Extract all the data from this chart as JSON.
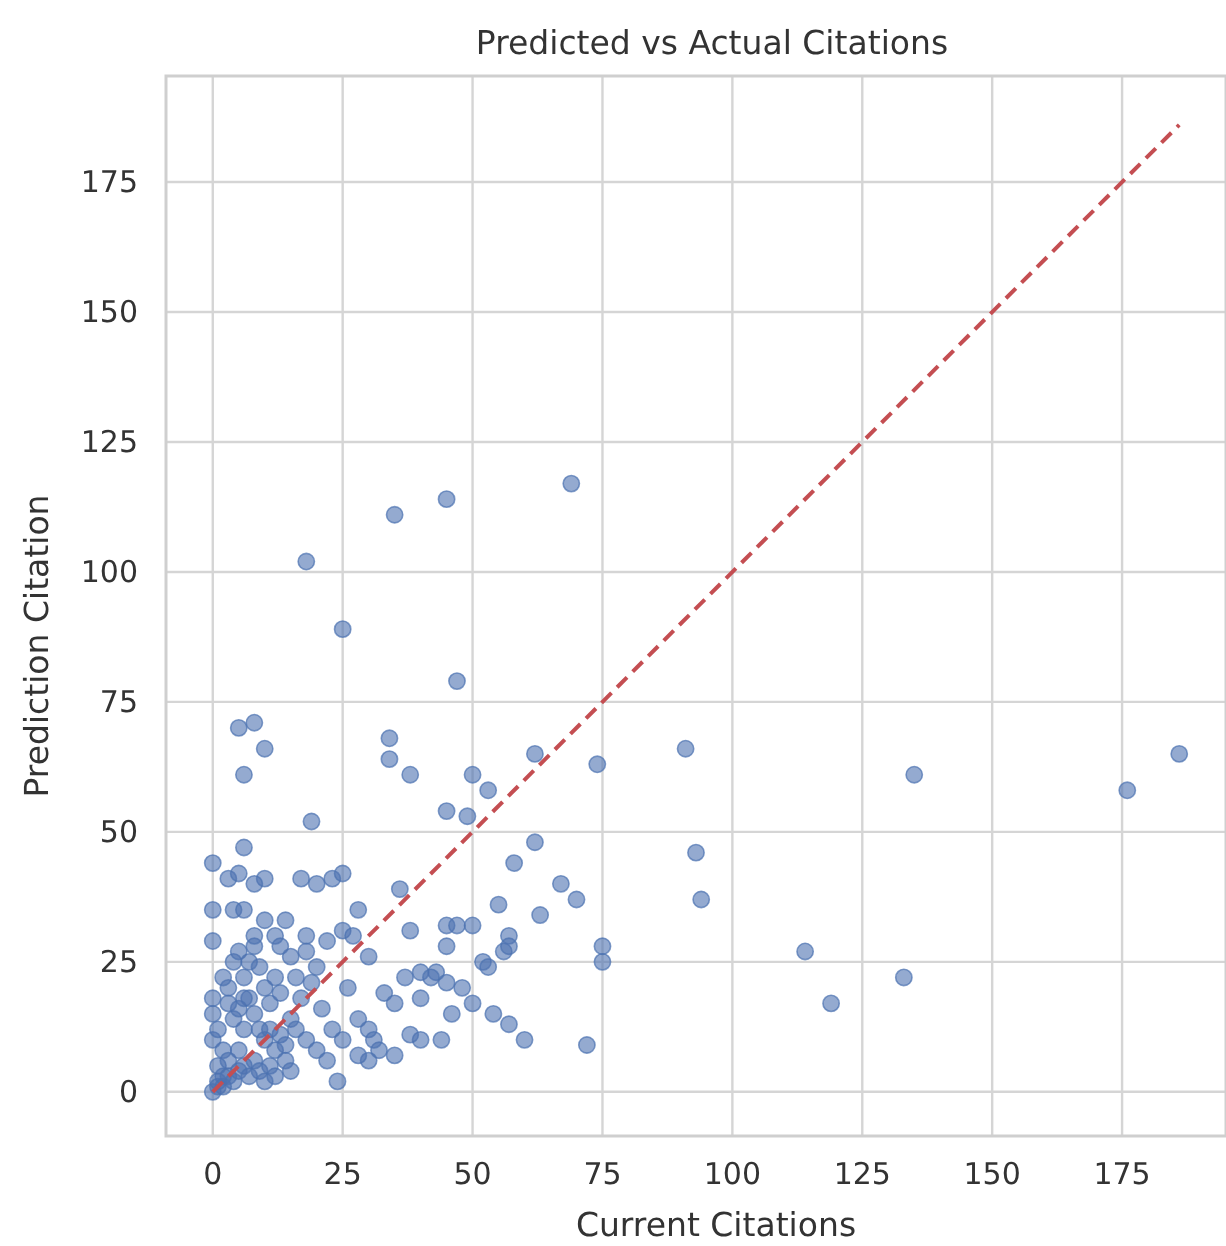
{
  "chart_data": {
    "type": "scatter",
    "title": "Predicted vs Actual Citations",
    "xlabel": "Current Citations",
    "ylabel": "Prediction Citation",
    "xlim": [
      -9,
      195
    ],
    "ylim": [
      -8.5,
      195.4
    ],
    "xticks": [
      0,
      25,
      50,
      75,
      100,
      125,
      150,
      175
    ],
    "yticks": [
      0,
      25,
      50,
      75,
      100,
      125,
      150,
      175
    ],
    "grid": true,
    "marker": "circle",
    "series": [
      {
        "color": "#4c72b0",
        "x": [
          18,
          25,
          35,
          45,
          69,
          47,
          5,
          8,
          10,
          6,
          34,
          34,
          38,
          50,
          62,
          74,
          91,
          135,
          186,
          176,
          45,
          49,
          53,
          62,
          58,
          19,
          0,
          6,
          93,
          94,
          114,
          119,
          133,
          72,
          75,
          75,
          67,
          70,
          55,
          63,
          57,
          50,
          45,
          47,
          45,
          52,
          53,
          56,
          57,
          38,
          28,
          36,
          23,
          25,
          17,
          20,
          10,
          8,
          3,
          5,
          0,
          4,
          6,
          0,
          25,
          27,
          18,
          22,
          30,
          37,
          40,
          43,
          45,
          48,
          50,
          42,
          46,
          54,
          57,
          60,
          44,
          40,
          38,
          32,
          24,
          30,
          35,
          40,
          33,
          35,
          26,
          28,
          30,
          31,
          28,
          0,
          1,
          2,
          1,
          3,
          2,
          0,
          1,
          0,
          0,
          3,
          4,
          5,
          6,
          7,
          8,
          9,
          10,
          12,
          14,
          15,
          3,
          5,
          6,
          7,
          8,
          9,
          10,
          11,
          12,
          13,
          15,
          16,
          18,
          20,
          22,
          17,
          19,
          21,
          23,
          25,
          1,
          2,
          4,
          5,
          6,
          7,
          8,
          9,
          10,
          11,
          12,
          4,
          5,
          6,
          2,
          3,
          8,
          10,
          12,
          15,
          16,
          13,
          14,
          18,
          20,
          11,
          13,
          14
        ],
        "values": [
          102,
          89,
          111,
          114,
          117,
          79,
          70,
          71,
          66,
          61,
          68,
          64,
          61,
          61,
          65,
          63,
          66,
          61,
          65,
          58,
          54,
          53,
          58,
          48,
          44,
          52,
          44,
          47,
          46,
          37,
          27,
          17,
          22,
          9,
          25,
          28,
          40,
          37,
          36,
          34,
          30,
          32,
          32,
          32,
          28,
          25,
          24,
          27,
          28,
          31,
          35,
          39,
          41,
          42,
          41,
          40,
          41,
          40,
          41,
          42,
          35,
          35,
          35,
          29,
          31,
          30,
          30,
          29,
          26,
          22,
          23,
          23,
          21,
          20,
          17,
          22,
          15,
          15,
          13,
          10,
          10,
          10,
          11,
          8,
          2,
          6,
          7,
          18,
          19,
          17,
          20,
          14,
          12,
          10,
          7,
          0,
          2,
          1,
          5,
          3,
          8,
          10,
          12,
          15,
          18,
          20,
          25,
          27,
          22,
          18,
          15,
          12,
          10,
          8,
          6,
          4,
          6,
          8,
          12,
          25,
          28,
          24,
          20,
          17,
          22,
          19,
          14,
          12,
          10,
          8,
          6,
          18,
          21,
          16,
          12,
          10,
          1,
          3,
          2,
          4,
          5,
          3,
          6,
          4,
          2,
          5,
          3,
          14,
          16,
          18,
          22,
          17,
          30,
          33,
          30,
          26,
          22,
          28,
          33,
          27,
          24,
          12,
          11,
          9
        ]
      },
      {
        "type": "line",
        "color": "#c44e52",
        "line_style": "dashed",
        "marker": "none",
        "x": [
          0,
          186
        ],
        "values": [
          0,
          186
        ]
      }
    ]
  }
}
